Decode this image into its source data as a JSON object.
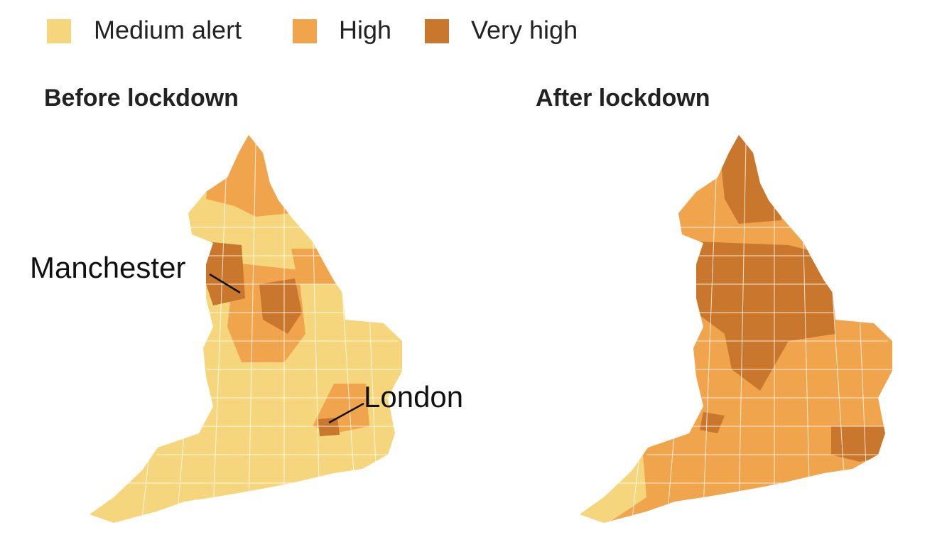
{
  "legend": {
    "items": [
      {
        "label": "Medium alert",
        "color": "#f6d67c"
      },
      {
        "label": "High",
        "color": "#f0a54d"
      },
      {
        "label": "Very high",
        "color": "#c9772d"
      }
    ]
  },
  "maps": [
    {
      "title": "Before lockdown",
      "annotations": [
        "Manchester",
        "London"
      ]
    },
    {
      "title": "After lockdown"
    }
  ]
}
